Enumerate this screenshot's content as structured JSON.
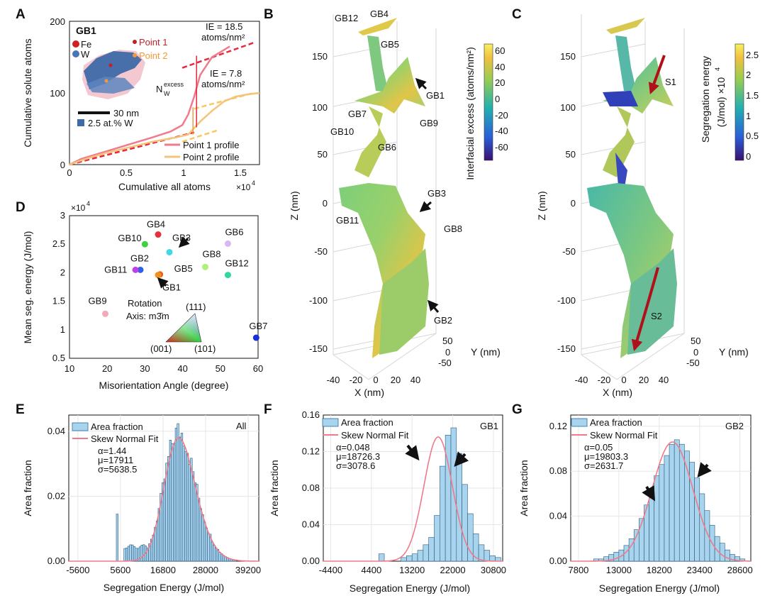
{
  "panels": {
    "A": {
      "label": "A",
      "xlabel": "Cumulative all atoms",
      "ylabel": "Cumulative solute atoms",
      "xticks": [
        "0",
        "0.5",
        "1",
        "1.5"
      ],
      "yticks": [
        "0",
        "100",
        "200"
      ],
      "x_exp": "×10",
      "x_exp_pow": "4",
      "inset": {
        "title": "GB1",
        "fe": "Fe",
        "w": "W",
        "point1": "Point 1",
        "point2": "Point 2",
        "scale": "30 nm",
        "iso": "2.5 at.% W"
      },
      "ie1_a": "IE = 18.5",
      "ie1_b": "atoms/nm²",
      "ie2_a": "IE = 7.8",
      "ie2_b": "atoms/nm²",
      "nexcess_n": "N",
      "nexcess_sub": "W",
      "nexcess_sup": "excess",
      "legend": [
        "Point 1 profile",
        "Point 2 profile"
      ],
      "colors": {
        "p1": "#f07a8e",
        "p2": "#f4c47a",
        "fit": "#e8283c",
        "fit2": "#f7c760"
      }
    },
    "B": {
      "label": "B",
      "zlabel": "Z (nm)",
      "zticks": [
        "150",
        "100",
        "50",
        "0",
        "-50",
        "-100",
        "-150"
      ],
      "xlabel": "X (nm)",
      "xticks": [
        "-40",
        "-20",
        "0",
        "20",
        "40"
      ],
      "ylabel": "Y (nm)",
      "yticks": [
        "50",
        "0",
        "-50"
      ],
      "gbs": [
        "GB12",
        "GB4",
        "GB5",
        "GB1",
        "GB7",
        "GB9",
        "GB10",
        "GB6",
        "GB3",
        "GB11",
        "GB8",
        "GB2"
      ],
      "cbar_label": "Interfacial excess (atoms/nm²)",
      "cbar_ticks": [
        "60",
        "40",
        "20",
        "0",
        "-20",
        "-40",
        "-60"
      ]
    },
    "C": {
      "label": "C",
      "zlabel": "Z (nm)",
      "zticks": [
        "150",
        "100",
        "50",
        "0",
        "-50",
        "-100",
        "-150"
      ],
      "xlabel": "X (nm)",
      "xticks": [
        "-40",
        "-20",
        "0",
        "20",
        "40"
      ],
      "ylabel": "Y (nm)",
      "yticks": [
        "50",
        "0",
        "-50"
      ],
      "s1": "S1",
      "s2": "S2",
      "cbar_label_a": "Segregation energy",
      "cbar_label_b": "(J/mol) ×10",
      "cbar_label_pow": "4",
      "cbar_ticks": [
        "2.5",
        "2",
        "1.5",
        "1",
        "0.5",
        "0"
      ]
    },
    "D": {
      "label": "D",
      "xlabel": "Misorientation Angle (degree)",
      "ylabel": "Mean seg. energy (J/mol)",
      "xticks": [
        "10",
        "20",
        "30",
        "40",
        "50",
        "60"
      ],
      "yticks": [
        "0.5",
        "1",
        "1.5",
        "2",
        "2.5",
        "3"
      ],
      "y_exp": "×10",
      "y_exp_pow": "4",
      "rotation_a": "Rotation",
      "rotation_b": "Axis: m3̄m",
      "tri_111": "(111)",
      "tri_001": "(001)",
      "tri_101": "(101)"
    },
    "E": {
      "label": "E",
      "tag": "All",
      "xlabel": "Segregation Energy (J/mol)",
      "ylabel": "Area fraction",
      "xticks": [
        "-5600",
        "5600",
        "16800",
        "28000",
        "39200"
      ],
      "yticks": [
        "0.00",
        "0.02",
        "0.04"
      ],
      "legend": [
        "Area fraction",
        "Skew Normal Fit"
      ],
      "stats": [
        "α=1.44",
        "μ=17911",
        "σ=5638.5"
      ]
    },
    "F": {
      "label": "F",
      "tag": "GB1",
      "xlabel": "Segregation Energy (J/mol)",
      "ylabel": "Area fraction",
      "xticks": [
        "-4400",
        "4400",
        "13200",
        "22000",
        "30800"
      ],
      "yticks": [
        "0.00",
        "0.04",
        "0.08",
        "0.12",
        "0.16"
      ],
      "legend": [
        "Area fraction",
        "Skew Normal Fit"
      ],
      "stats": [
        "α=0.048",
        "μ=18726.3",
        "σ=3078.6"
      ]
    },
    "G": {
      "label": "G",
      "tag": "GB2",
      "xlabel": "Segregation Energy (J/mol)",
      "ylabel": "Area fraction",
      "xticks": [
        "7800",
        "13000",
        "18200",
        "23400",
        "28600"
      ],
      "yticks": [
        "0.00",
        "0.04",
        "0.08",
        "0.12"
      ],
      "legend": [
        "Area fraction",
        "Skew Normal Fit"
      ],
      "stats": [
        "α=0.05",
        "μ=19803.3",
        "σ=2631.7"
      ]
    }
  },
  "chart_data": [
    {
      "id": "A",
      "type": "line",
      "title": "",
      "xlabel": "Cumulative all atoms (×10^4)",
      "ylabel": "Cumulative solute atoms",
      "xlim": [
        0,
        1.6
      ],
      "ylim": [
        0,
        200
      ],
      "series": [
        {
          "name": "Point 1 profile",
          "x": [
            0,
            0.1,
            0.3,
            0.5,
            0.7,
            0.85,
            0.95,
            1.0,
            1.05,
            1.1,
            1.2,
            1.35
          ],
          "y": [
            0,
            8,
            18,
            28,
            38,
            46,
            55,
            70,
            95,
            125,
            150,
            165
          ]
        },
        {
          "name": "Point 2 profile",
          "x": [
            0,
            0.1,
            0.3,
            0.5,
            0.7,
            0.9,
            1.0,
            1.1,
            1.2,
            1.3,
            1.4,
            1.5,
            1.6
          ],
          "y": [
            0,
            6,
            16,
            24,
            32,
            38,
            42,
            60,
            75,
            88,
            95,
            98,
            100
          ]
        }
      ]
    },
    {
      "id": "D",
      "type": "scatter",
      "xlabel": "Misorientation Angle (degree)",
      "ylabel": "Mean seg. energy (J/mol) ×10^4",
      "xlim": [
        10,
        60
      ],
      "ylim": [
        0.5,
        3.0
      ],
      "points": [
        {
          "label": "GB4",
          "x": 33.5,
          "y": 2.67,
          "color": "#e8303c"
        },
        {
          "label": "GB10",
          "x": 30.0,
          "y": 2.5,
          "color": "#40d040"
        },
        {
          "label": "GB3",
          "x": 36.5,
          "y": 2.36,
          "color": "#40d8e8"
        },
        {
          "label": "GB6",
          "x": 52.0,
          "y": 2.51,
          "color": "#d8b8f0"
        },
        {
          "label": "GB2",
          "x": 28.8,
          "y": 2.05,
          "color": "#3060e8"
        },
        {
          "label": "GB11",
          "x": 27.5,
          "y": 2.05,
          "color": "#c040e8"
        },
        {
          "label": "GB5",
          "x": 34.0,
          "y": 1.97,
          "color": "#e86018"
        },
        {
          "label": "GB8",
          "x": 46.0,
          "y": 2.1,
          "color": "#b0f078"
        },
        {
          "label": "GB12",
          "x": 52.0,
          "y": 1.96,
          "color": "#30d8a0"
        },
        {
          "label": "GB1",
          "x": 33.5,
          "y": 1.96,
          "color": "#f09020"
        },
        {
          "label": "GB9",
          "x": 19.5,
          "y": 1.28,
          "color": "#f4a8b8"
        },
        {
          "label": "GB7",
          "x": 59.5,
          "y": 0.86,
          "color": "#1830d8"
        }
      ]
    },
    {
      "id": "E",
      "type": "bar",
      "xlabel": "Segregation Energy (J/mol)",
      "ylabel": "Area fraction",
      "xlim": [
        -8000,
        42000
      ],
      "ylim": [
        0,
        0.045
      ],
      "skew_fit": {
        "alpha": 1.44,
        "mu": 17911,
        "sigma": 5638.5,
        "peak": 0.038
      }
    },
    {
      "id": "F",
      "type": "bar",
      "xlabel": "Segregation Energy (J/mol)",
      "ylabel": "Area fraction",
      "xlim": [
        -6000,
        32800
      ],
      "ylim": [
        0,
        0.16
      ],
      "bin_width": 1200,
      "bin_start": 6000,
      "values": [
        0.008,
        0,
        0,
        0,
        0.004,
        0.006,
        0.008,
        0.012,
        0.018,
        0.026,
        0.05,
        0.104,
        0.138,
        0.146,
        0.118,
        0.084,
        0.052,
        0.03,
        0.018,
        0.012,
        0.006,
        0.004
      ],
      "skew_fit": {
        "alpha": 0.048,
        "mu": 18726.3,
        "sigma": 3078.6,
        "peak": 0.136
      }
    },
    {
      "id": "G",
      "type": "bar",
      "xlabel": "Segregation Energy (J/mol)",
      "ylabel": "Area fraction",
      "xlim": [
        6800,
        30000
      ],
      "ylim": [
        0,
        0.13
      ],
      "bin_width": 650,
      "bin_start": 9750,
      "values": [
        0.002,
        0.002,
        0.004,
        0.006,
        0.008,
        0.01,
        0.014,
        0.02,
        0.028,
        0.038,
        0.05,
        0.062,
        0.076,
        0.086,
        0.094,
        0.104,
        0.108,
        0.104,
        0.098,
        0.088,
        0.074,
        0.06,
        0.045,
        0.032,
        0.022,
        0.016,
        0.01,
        0.006,
        0.004,
        0.002
      ],
      "skew_fit": {
        "alpha": 0.05,
        "mu": 19803.3,
        "sigma": 2631.7,
        "peak": 0.106
      }
    }
  ]
}
